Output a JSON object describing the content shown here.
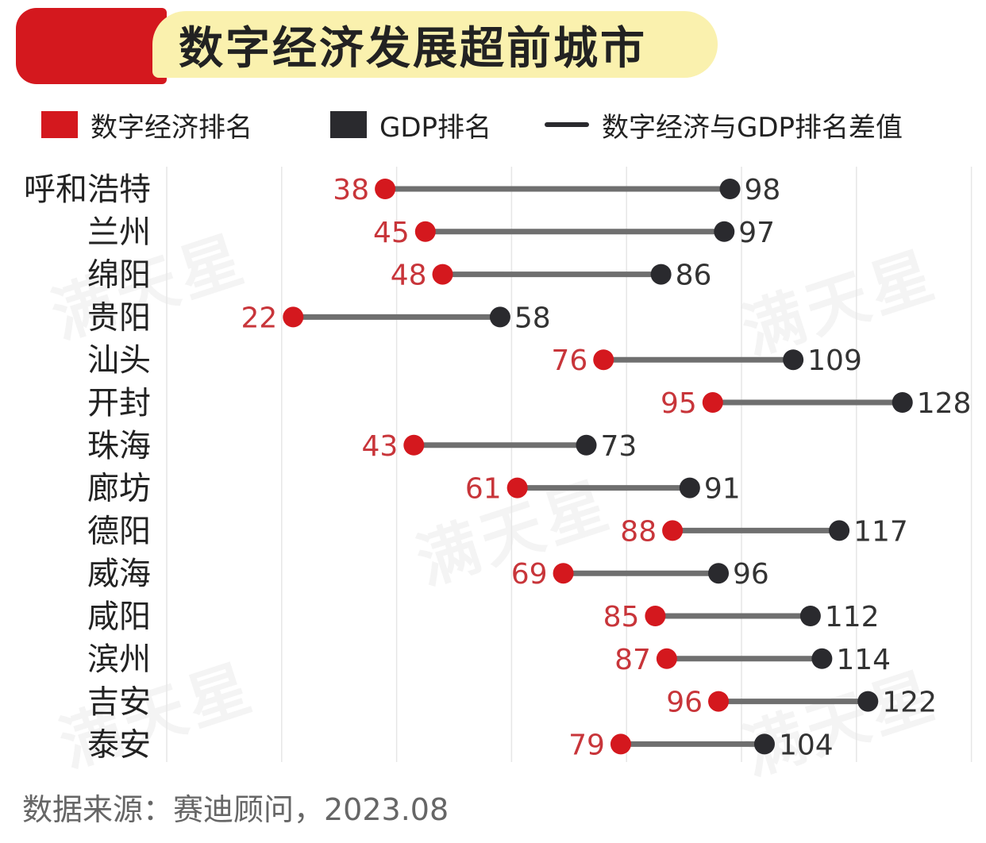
{
  "title": "数字经济发展超前城市",
  "legend": {
    "digital": "数字经济排名",
    "gdp": "GDP排名",
    "diff": "数字经济与GDP排名差值"
  },
  "colors": {
    "digital": "#d4181e",
    "gdp": "#2a2a2e",
    "line": "#6f6f6f",
    "digital_label": "#c8353a",
    "gdp_label": "#333333"
  },
  "watermark": "满天星",
  "source": "数据来源：赛迪顾问，2023.08",
  "chart_data": {
    "type": "dumbbell",
    "categories": [
      "呼和浩特",
      "兰州",
      "绵阳",
      "贵阳",
      "汕头",
      "开封",
      "珠海",
      "廊坊",
      "德阳",
      "威海",
      "咸阳",
      "滨州",
      "吉安",
      "泰安"
    ],
    "series": [
      {
        "name": "数字经济排名",
        "values": [
          38,
          45,
          48,
          22,
          76,
          95,
          43,
          61,
          88,
          69,
          85,
          87,
          96,
          79
        ]
      },
      {
        "name": "GDP排名",
        "values": [
          98,
          97,
          86,
          58,
          109,
          128,
          73,
          91,
          117,
          96,
          112,
          114,
          122,
          104
        ]
      }
    ],
    "xlim": [
      0,
      140
    ],
    "grid": true,
    "legend_position": "top"
  }
}
